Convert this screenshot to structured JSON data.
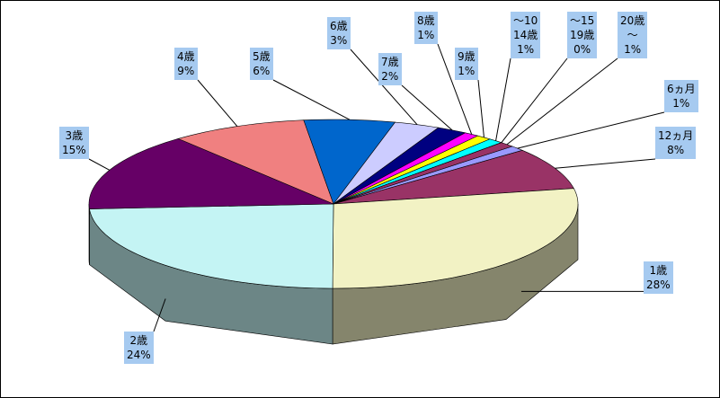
{
  "chart_data": {
    "type": "pie3d",
    "categories": [
      "6ヵ月",
      "12ヵ月",
      "1歳",
      "2歳",
      "3歳",
      "4歳",
      "5歳",
      "6歳",
      "7歳",
      "8歳",
      "9歳",
      "～10\n14歳",
      "～15\n19歳",
      "20歳\n～"
    ],
    "values": [
      1,
      8,
      28,
      24,
      15,
      9,
      6,
      3,
      2,
      1,
      1,
      1,
      0,
      1
    ],
    "value_labels": [
      "1%",
      "8%",
      "28%",
      "24%",
      "15%",
      "9%",
      "6%",
      "3%",
      "2%",
      "1%",
      "1%",
      "1%",
      "0%",
      "1%"
    ],
    "colors": [
      "#9999ff",
      "#993366",
      "#f2f2c4",
      "#c4f4f4",
      "#660066",
      "#f08080",
      "#0066cc",
      "#ccccff",
      "#000080",
      "#ff00ff",
      "#ffff00",
      "#00ffff",
      "#800000",
      "#993366"
    ]
  }
}
